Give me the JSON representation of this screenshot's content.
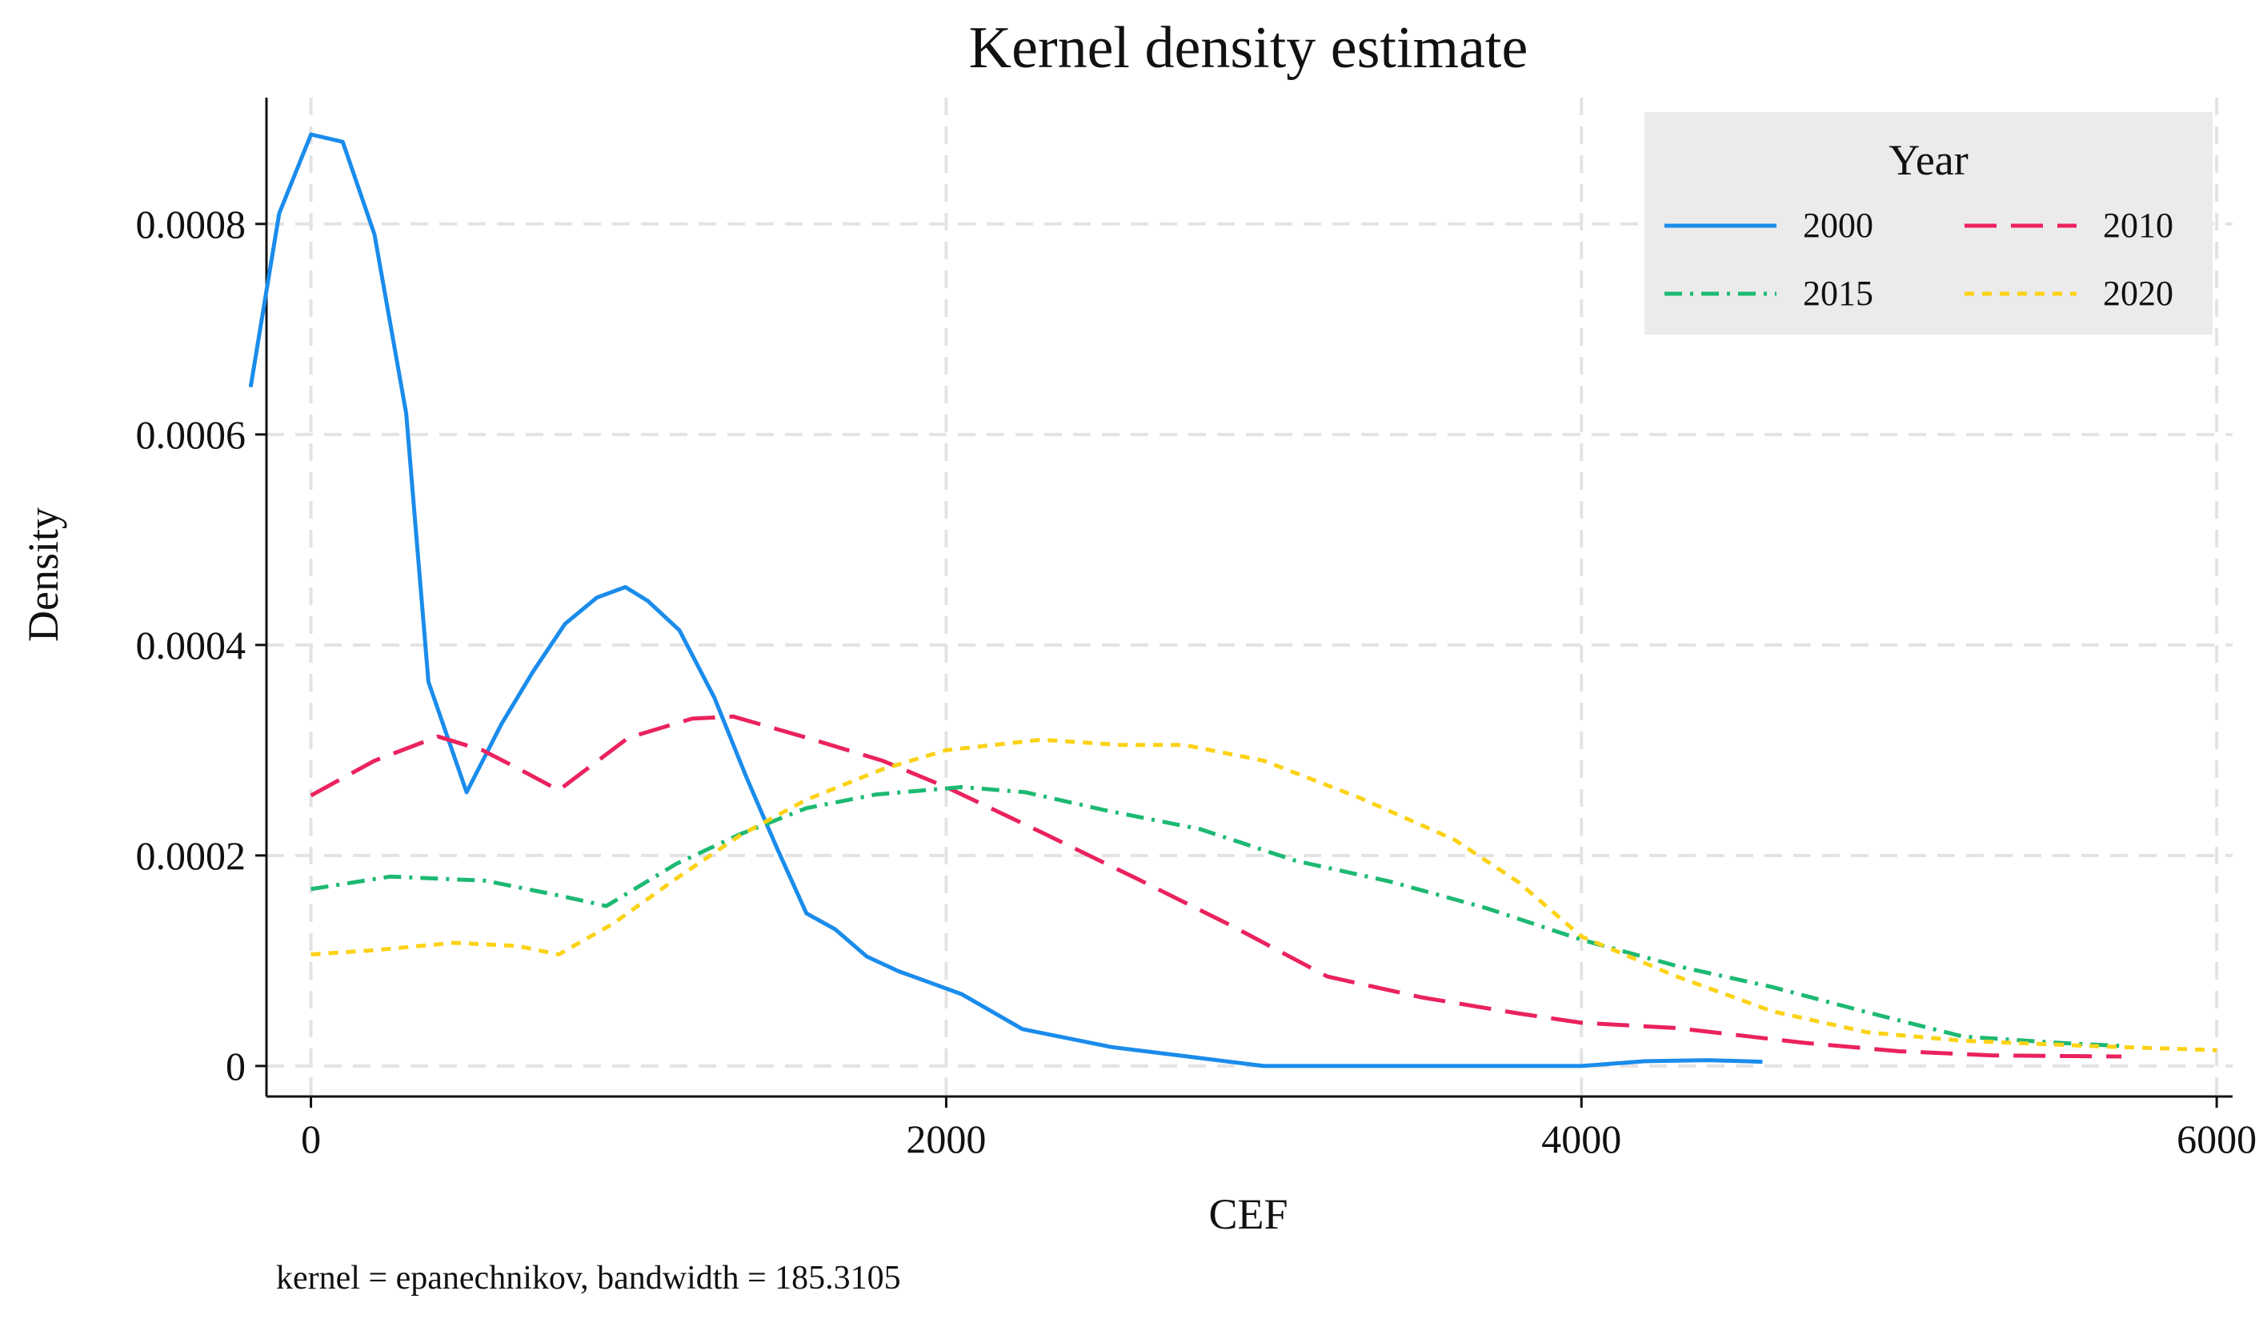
{
  "chart_data": {
    "type": "line",
    "title": "Kernel density estimate",
    "xlabel": "CEF",
    "ylabel": "Density",
    "note": "kernel = epanechnikov, bandwidth = 185.3105",
    "xlim": [
      -140,
      6050
    ],
    "ylim": [
      -2.9e-05,
      0.00092
    ],
    "xticks": [
      0,
      2000,
      4000,
      6000
    ],
    "xtick_labels": [
      "0",
      "2000",
      "4000",
      "6000"
    ],
    "yticks": [
      0,
      0.0002,
      0.0004,
      0.0006,
      0.0008
    ],
    "ytick_labels": [
      "0",
      "0.0002",
      "0.0004",
      "0.0006",
      "0.0008"
    ],
    "grid": true,
    "legend": {
      "title": "Year",
      "placement": "top-right"
    },
    "series": [
      {
        "name": "2000",
        "color": "#1a8ceb",
        "dash": "solid",
        "x": [
          -190,
          -100,
          0,
          100,
          200,
          300,
          370,
          490,
          600,
          700,
          800,
          900,
          990,
          1060,
          1160,
          1270,
          1370,
          1470,
          1560,
          1650,
          1750,
          1850,
          1960,
          2050,
          2240,
          2520,
          2760,
          3000,
          4000,
          4200,
          4400,
          4570
        ],
        "y": [
          0.000645,
          0.00081,
          0.000885,
          0.000878,
          0.00079,
          0.00062,
          0.000365,
          0.00026,
          0.000325,
          0.000375,
          0.00042,
          0.000445,
          0.000455,
          0.000442,
          0.000414,
          0.00035,
          0.000275,
          0.000205,
          0.000145,
          0.00013,
          0.000104,
          9e-05,
          7.8e-05,
          6.8e-05,
          3.5e-05,
          1.8e-05,
          9e-06,
          0.0,
          0.0,
          4.5e-06,
          5.5e-06,
          4e-06
        ]
      },
      {
        "name": "2010",
        "color": "#ea225e",
        "dash": "long-dash",
        "x": [
          0,
          200,
          400,
          540,
          650,
          780,
          1000,
          1200,
          1330,
          1560,
          1800,
          2000,
          2300,
          2600,
          2900,
          3200,
          3500,
          3800,
          4000,
          4300,
          4700,
          5000,
          5300,
          5700
        ],
        "y": [
          0.000257,
          0.00029,
          0.000313,
          0.0003,
          0.000283,
          0.000262,
          0.000312,
          0.00033,
          0.000332,
          0.000312,
          0.00029,
          0.000265,
          0.000222,
          0.000178,
          0.000133,
          8.5e-05,
          6.5e-05,
          5e-05,
          4.1e-05,
          3.6e-05,
          2.2e-05,
          1.4e-05,
          1e-05,
          9e-06
        ]
      },
      {
        "name": "2015",
        "color": "#1db973",
        "dash": "dash-dot",
        "x": [
          0,
          250,
          550,
          780,
          930,
          1150,
          1350,
          1560,
          1780,
          2050,
          2250,
          2500,
          2800,
          3100,
          3400,
          3700,
          4000,
          4300,
          4600,
          4900,
          5200,
          5500,
          5700
        ],
        "y": [
          0.000168,
          0.00018,
          0.000176,
          0.000162,
          0.000152,
          0.000192,
          0.00022,
          0.000245,
          0.000258,
          0.000265,
          0.00026,
          0.000243,
          0.000225,
          0.000195,
          0.000175,
          0.00015,
          0.00012,
          9.5e-05,
          7.5e-05,
          5.1e-05,
          2.8e-05,
          2.2e-05,
          1.9e-05
        ]
      },
      {
        "name": "2020",
        "color": "#fcd216",
        "dash": "short-dash",
        "x": [
          0,
          200,
          450,
          650,
          780,
          950,
          1150,
          1350,
          1560,
          1800,
          2000,
          2300,
          2550,
          2750,
          3000,
          3300,
          3600,
          3800,
          4000,
          4300,
          4600,
          4900,
          5200,
          5600,
          6000
        ],
        "y": [
          0.000106,
          0.00011,
          0.000117,
          0.000114,
          0.000106,
          0.000135,
          0.000178,
          0.000219,
          0.000253,
          0.000282,
          0.0003,
          0.00031,
          0.000305,
          0.000305,
          0.00029,
          0.000255,
          0.000215,
          0.000175,
          0.000123,
          8.5e-05,
          5.2e-05,
          3.2e-05,
          2.4e-05,
          1.9e-05,
          1.5e-05
        ]
      }
    ]
  }
}
